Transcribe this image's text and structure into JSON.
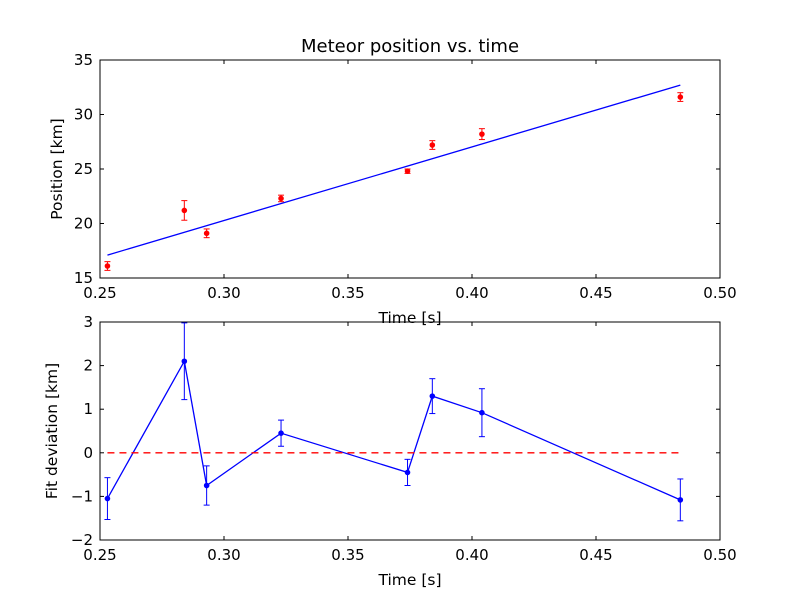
{
  "chart_data": [
    {
      "type": "scatter",
      "title": "Meteor position vs. time",
      "xlabel": "Time [s]",
      "ylabel": "Position [km]",
      "xlim": [
        0.25,
        0.5
      ],
      "ylim": [
        15,
        35
      ],
      "xticks": [
        0.25,
        0.3,
        0.35,
        0.4,
        0.45,
        0.5
      ],
      "xtick_labels": [
        "0.25",
        "0.30",
        "0.35",
        "0.40",
        "0.45",
        "0.50"
      ],
      "yticks": [
        15,
        20,
        25,
        30,
        35
      ],
      "ytick_labels": [
        "15",
        "20",
        "25",
        "30",
        "35"
      ],
      "grid": false,
      "series": [
        {
          "kind": "points-with-errorbars",
          "color": "#ff0000",
          "x": [
            0.253,
            0.284,
            0.293,
            0.323,
            0.374,
            0.384,
            0.404,
            0.484
          ],
          "y": [
            16.1,
            21.2,
            19.1,
            22.3,
            24.8,
            27.2,
            28.2,
            31.6
          ],
          "yerr": [
            0.4,
            0.9,
            0.4,
            0.3,
            0.2,
            0.4,
            0.5,
            0.4
          ]
        },
        {
          "kind": "fit-line",
          "color": "#0000ff",
          "x": [
            0.253,
            0.484
          ],
          "y": [
            17.1,
            32.7
          ]
        }
      ]
    },
    {
      "type": "line",
      "xlabel": "Time [s]",
      "ylabel": "Fit deviation [km]",
      "xlim": [
        0.25,
        0.5
      ],
      "ylim": [
        -2,
        3
      ],
      "xticks": [
        0.25,
        0.3,
        0.35,
        0.4,
        0.45,
        0.5
      ],
      "xtick_labels": [
        "0.25",
        "0.30",
        "0.35",
        "0.40",
        "0.45",
        "0.50"
      ],
      "yticks": [
        -2,
        -1,
        0,
        1,
        2,
        3
      ],
      "ytick_labels": [
        "−2",
        "−1",
        "0",
        "1",
        "2",
        "3"
      ],
      "grid": false,
      "series": [
        {
          "kind": "line-with-errorbars",
          "color": "#0000ff",
          "x": [
            0.253,
            0.284,
            0.293,
            0.323,
            0.374,
            0.384,
            0.404,
            0.484
          ],
          "y": [
            -1.05,
            2.1,
            -0.75,
            0.45,
            -0.45,
            1.3,
            0.92,
            -1.08
          ],
          "yerr": [
            0.48,
            0.88,
            0.45,
            0.3,
            0.3,
            0.4,
            0.55,
            0.48
          ]
        },
        {
          "kind": "reference-line",
          "style": "dashed",
          "color": "#ff0000",
          "x": [
            0.253,
            0.484
          ],
          "y": [
            0,
            0
          ]
        }
      ]
    }
  ]
}
